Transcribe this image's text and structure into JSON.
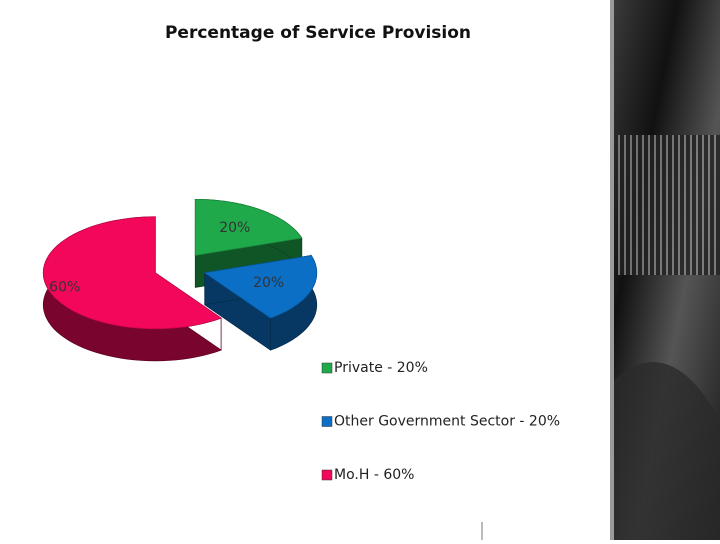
{
  "chart_data": {
    "type": "pie",
    "title": "Percentage of Service Provision",
    "categories": [
      "Private - 20%",
      "Other Government Sector - 20%",
      "Mo.H - 60%"
    ],
    "values": [
      20,
      20,
      60
    ],
    "value_labels": [
      "20%",
      "20%",
      "60%"
    ],
    "colors": [
      "#1fa94b",
      "#0b6fc6",
      "#f2075b"
    ],
    "legend": "right"
  }
}
